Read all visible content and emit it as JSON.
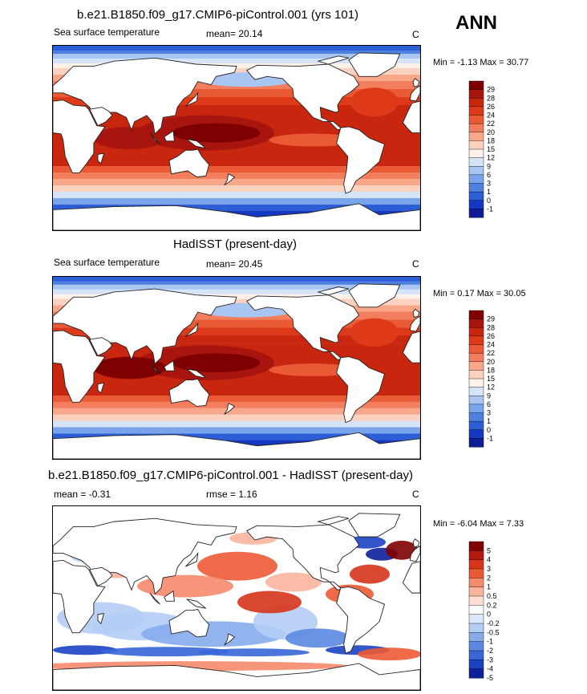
{
  "season": "ANN",
  "panels": [
    {
      "title": "b.e21.B1850.f09_g17.CMIP6-piControl.001 (yrs 101)",
      "variable": "Sea surface temperature",
      "stat_left": "",
      "stat_mid": "mean=  20.14",
      "units": "C",
      "minmax": "Min =  -1.13 Max =  30.77",
      "kind": "sst",
      "colorbar_levels": [
        "29",
        "28",
        "26",
        "24",
        "22",
        "20",
        "18",
        "15",
        "12",
        "9",
        "6",
        "3",
        "1",
        "0",
        "-1"
      ]
    },
    {
      "title": "HadISST (present-day)",
      "variable": "Sea surface temperature",
      "stat_left": "",
      "stat_mid": "mean=  20.45",
      "units": "C",
      "minmax": "Min =  0.17 Max =  30.05",
      "kind": "sst",
      "colorbar_levels": [
        "29",
        "28",
        "26",
        "24",
        "22",
        "20",
        "18",
        "15",
        "12",
        "9",
        "6",
        "3",
        "1",
        "0",
        "-1"
      ]
    },
    {
      "title": "b.e21.B1850.f09_g17.CMIP6-piControl.001 - HadISST (present-day)",
      "variable": "",
      "stat_left": "mean =  -0.31",
      "stat_mid": "rmse =   1.16",
      "units": "C",
      "minmax": "Min =  -6.04 Max =  7.33",
      "kind": "diff",
      "colorbar_levels": [
        "5",
        "4",
        "3",
        "2",
        "1",
        "0.5",
        "0.2",
        "0",
        "-0.2",
        "-0.5",
        "-1",
        "-2",
        "-3",
        "-4",
        "-5"
      ]
    }
  ],
  "colors": {
    "sst_scale": [
      "#7f0000",
      "#a8150e",
      "#c8260f",
      "#de3a1a",
      "#ea5a34",
      "#f37e5d",
      "#f8a78a",
      "#fbd2c0",
      "#fef1ea",
      "#d6e4fa",
      "#a9c6f3",
      "#7aa4ea",
      "#4e80e0",
      "#2c5fd6",
      "#1637c1",
      "#0e1c96"
    ],
    "diff_scale": [
      "#7f0000",
      "#b41910",
      "#d7341b",
      "#ec5a34",
      "#f68a6b",
      "#fab59d",
      "#fde0d3",
      "#ffffff",
      "#dbe7fb",
      "#b4cdf5",
      "#86acec",
      "#5c88e2",
      "#3866d8",
      "#1c42c4",
      "#0d1f9a"
    ],
    "land": "#ffffff",
    "coast": "#222222"
  }
}
